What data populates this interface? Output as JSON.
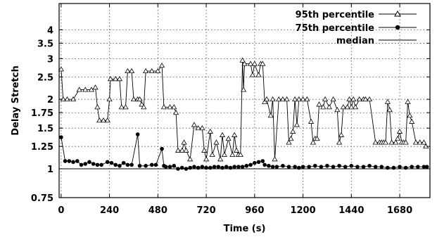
{
  "chart_data": {
    "type": "line",
    "xlabel": "Time (s)",
    "ylabel": "Delay Stretch",
    "xlim": [
      -10,
      1830
    ],
    "ylim": [
      0.75,
      5.2
    ],
    "log_y": true,
    "grid": true,
    "legend_position": "top-right",
    "x_ticks": [
      0,
      240,
      480,
      720,
      960,
      1200,
      1440,
      1680
    ],
    "x_tick_labels": [
      "0",
      "240",
      "480",
      "720",
      "960",
      "1200",
      "1440",
      "1680"
    ],
    "y_ticks": [
      0.75,
      1,
      1.25,
      1.5,
      1.75,
      2,
      2.5,
      3,
      3.5,
      4
    ],
    "y_tick_labels": [
      "0.75",
      "1",
      "1.25",
      "1.5",
      "1.75",
      "2",
      "2.5",
      "3",
      "3.5",
      "4"
    ],
    "legend": [
      "95th percentile",
      "75th percentile",
      "median"
    ],
    "series": [
      {
        "name": "95th percentile",
        "marker": "triangle",
        "points": [
          [
            0,
            2.7
          ],
          [
            10,
            2.0
          ],
          [
            30,
            2.0
          ],
          [
            60,
            2.0
          ],
          [
            90,
            2.2
          ],
          [
            120,
            2.2
          ],
          [
            150,
            2.2
          ],
          [
            170,
            2.25
          ],
          [
            180,
            1.85
          ],
          [
            190,
            1.62
          ],
          [
            210,
            1.62
          ],
          [
            230,
            1.62
          ],
          [
            240,
            2.0
          ],
          [
            245,
            2.45
          ],
          [
            270,
            2.45
          ],
          [
            290,
            2.45
          ],
          [
            300,
            1.85
          ],
          [
            320,
            1.85
          ],
          [
            330,
            2.65
          ],
          [
            350,
            2.65
          ],
          [
            360,
            2.0
          ],
          [
            380,
            2.0
          ],
          [
            390,
            2.0
          ],
          [
            400,
            1.9
          ],
          [
            410,
            1.85
          ],
          [
            420,
            2.65
          ],
          [
            450,
            2.65
          ],
          [
            480,
            2.65
          ],
          [
            500,
            2.8
          ],
          [
            510,
            1.85
          ],
          [
            540,
            1.85
          ],
          [
            560,
            1.85
          ],
          [
            570,
            1.75
          ],
          [
            580,
            1.2
          ],
          [
            600,
            1.2
          ],
          [
            610,
            1.3
          ],
          [
            620,
            1.2
          ],
          [
            640,
            1.1
          ],
          [
            660,
            1.55
          ],
          [
            680,
            1.5
          ],
          [
            700,
            1.5
          ],
          [
            710,
            1.2
          ],
          [
            720,
            1.1
          ],
          [
            740,
            1.45
          ],
          [
            750,
            1.15
          ],
          [
            770,
            1.3
          ],
          [
            790,
            1.1
          ],
          [
            800,
            1.4
          ],
          [
            810,
            1.15
          ],
          [
            830,
            1.35
          ],
          [
            850,
            1.15
          ],
          [
            860,
            1.4
          ],
          [
            870,
            1.2
          ],
          [
            880,
            1.15
          ],
          [
            890,
            1.15
          ],
          [
            900,
            2.95
          ],
          [
            905,
            2.2
          ],
          [
            910,
            2.85
          ],
          [
            940,
            2.85
          ],
          [
            950,
            2.55
          ],
          [
            960,
            2.85
          ],
          [
            980,
            2.55
          ],
          [
            990,
            2.85
          ],
          [
            1000,
            2.85
          ],
          [
            1010,
            1.95
          ],
          [
            1020,
            2.0
          ],
          [
            1040,
            1.7
          ],
          [
            1050,
            2.0
          ],
          [
            1060,
            1.1
          ],
          [
            1080,
            2.0
          ],
          [
            1100,
            2.0
          ],
          [
            1120,
            2.0
          ],
          [
            1130,
            1.3
          ],
          [
            1140,
            1.35
          ],
          [
            1150,
            1.45
          ],
          [
            1160,
            2.0
          ],
          [
            1170,
            1.55
          ],
          [
            1180,
            2.0
          ],
          [
            1200,
            2.0
          ],
          [
            1220,
            2.0
          ],
          [
            1240,
            1.6
          ],
          [
            1250,
            1.3
          ],
          [
            1260,
            1.35
          ],
          [
            1270,
            1.35
          ],
          [
            1280,
            1.9
          ],
          [
            1300,
            1.85
          ],
          [
            1310,
            2.0
          ],
          [
            1330,
            1.85
          ],
          [
            1350,
            2.0
          ],
          [
            1370,
            1.8
          ],
          [
            1380,
            1.3
          ],
          [
            1390,
            1.4
          ],
          [
            1400,
            1.85
          ],
          [
            1420,
            1.85
          ],
          [
            1430,
            2.0
          ],
          [
            1440,
            1.85
          ],
          [
            1450,
            2.0
          ],
          [
            1460,
            1.85
          ],
          [
            1480,
            2.0
          ],
          [
            1500,
            2.0
          ],
          [
            1510,
            2.0
          ],
          [
            1530,
            2.0
          ],
          [
            1560,
            1.3
          ],
          [
            1580,
            1.3
          ],
          [
            1590,
            1.3
          ],
          [
            1600,
            1.3
          ],
          [
            1610,
            1.3
          ],
          [
            1620,
            1.95
          ],
          [
            1630,
            1.8
          ],
          [
            1640,
            1.3
          ],
          [
            1660,
            1.3
          ],
          [
            1670,
            1.35
          ],
          [
            1680,
            1.45
          ],
          [
            1690,
            1.3
          ],
          [
            1700,
            1.3
          ],
          [
            1710,
            1.3
          ],
          [
            1720,
            1.95
          ],
          [
            1730,
            1.7
          ],
          [
            1740,
            1.6
          ],
          [
            1760,
            1.3
          ],
          [
            1780,
            1.3
          ],
          [
            1800,
            1.3
          ],
          [
            1810,
            1.25
          ]
        ]
      },
      {
        "name": "75th percentile",
        "marker": "circle",
        "points": [
          [
            0,
            1.37
          ],
          [
            20,
            1.08
          ],
          [
            40,
            1.08
          ],
          [
            60,
            1.07
          ],
          [
            80,
            1.08
          ],
          [
            100,
            1.04
          ],
          [
            120,
            1.05
          ],
          [
            140,
            1.07
          ],
          [
            160,
            1.05
          ],
          [
            180,
            1.04
          ],
          [
            200,
            1.04
          ],
          [
            230,
            1.07
          ],
          [
            250,
            1.06
          ],
          [
            270,
            1.04
          ],
          [
            290,
            1.03
          ],
          [
            310,
            1.06
          ],
          [
            330,
            1.04
          ],
          [
            350,
            1.04
          ],
          [
            380,
            1.41
          ],
          [
            390,
            1.03
          ],
          [
            420,
            1.03
          ],
          [
            450,
            1.04
          ],
          [
            470,
            1.04
          ],
          [
            500,
            1.22
          ],
          [
            510,
            1.03
          ],
          [
            520,
            1.02
          ],
          [
            540,
            1.02
          ],
          [
            560,
            1.03
          ],
          [
            580,
            1.0
          ],
          [
            600,
            1.01
          ],
          [
            620,
            1.0
          ],
          [
            640,
            1.01
          ],
          [
            660,
            1.02
          ],
          [
            680,
            1.01
          ],
          [
            700,
            1.02
          ],
          [
            720,
            1.01
          ],
          [
            740,
            1.01
          ],
          [
            760,
            1.02
          ],
          [
            780,
            1.02
          ],
          [
            800,
            1.01
          ],
          [
            820,
            1.02
          ],
          [
            840,
            1.01
          ],
          [
            860,
            1.02
          ],
          [
            880,
            1.02
          ],
          [
            900,
            1.02
          ],
          [
            920,
            1.03
          ],
          [
            940,
            1.04
          ],
          [
            960,
            1.06
          ],
          [
            980,
            1.07
          ],
          [
            1000,
            1.08
          ],
          [
            1010,
            1.04
          ],
          [
            1030,
            1.03
          ],
          [
            1050,
            1.02
          ],
          [
            1070,
            1.02
          ],
          [
            1100,
            1.03
          ],
          [
            1130,
            1.02
          ],
          [
            1160,
            1.02
          ],
          [
            1180,
            1.01
          ],
          [
            1200,
            1.02
          ],
          [
            1230,
            1.02
          ],
          [
            1260,
            1.03
          ],
          [
            1290,
            1.02
          ],
          [
            1320,
            1.03
          ],
          [
            1350,
            1.02
          ],
          [
            1380,
            1.03
          ],
          [
            1410,
            1.02
          ],
          [
            1440,
            1.03
          ],
          [
            1470,
            1.02
          ],
          [
            1500,
            1.02
          ],
          [
            1530,
            1.03
          ],
          [
            1560,
            1.02
          ],
          [
            1590,
            1.02
          ],
          [
            1620,
            1.01
          ],
          [
            1650,
            1.01
          ],
          [
            1680,
            1.02
          ],
          [
            1710,
            1.01
          ],
          [
            1740,
            1.02
          ],
          [
            1770,
            1.02
          ],
          [
            1800,
            1.02
          ],
          [
            1815,
            1.02
          ]
        ]
      },
      {
        "name": "median",
        "marker": "none",
        "points": [
          [
            0,
            1.0
          ],
          [
            100,
            1.0
          ],
          [
            200,
            1.0
          ],
          [
            300,
            1.0
          ],
          [
            400,
            1.0
          ],
          [
            500,
            1.0
          ],
          [
            600,
            1.0
          ],
          [
            700,
            1.0
          ],
          [
            800,
            1.0
          ],
          [
            900,
            1.0
          ],
          [
            1000,
            1.0
          ],
          [
            1100,
            1.0
          ],
          [
            1200,
            1.0
          ],
          [
            1300,
            1.0
          ],
          [
            1400,
            1.0
          ],
          [
            1500,
            1.0
          ],
          [
            1600,
            1.0
          ],
          [
            1700,
            1.0
          ],
          [
            1815,
            1.0
          ]
        ]
      }
    ]
  }
}
